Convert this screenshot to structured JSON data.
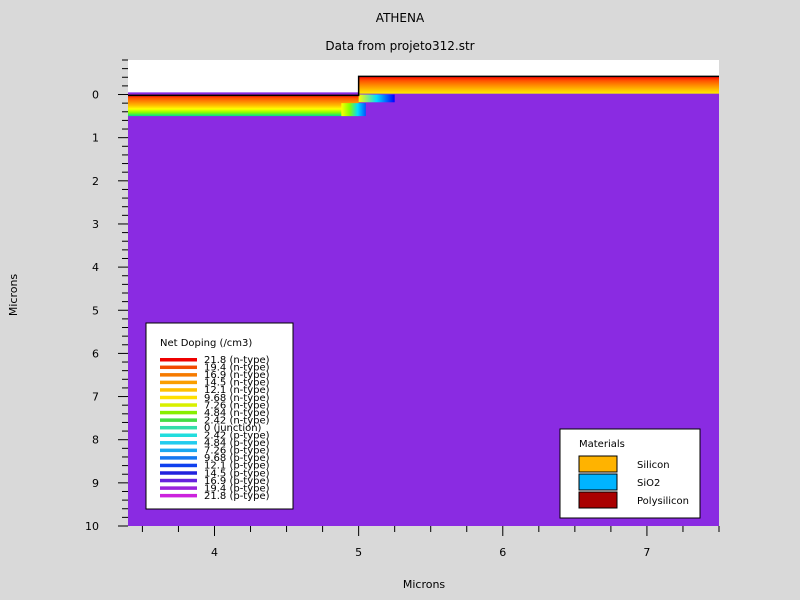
{
  "chart_data": {
    "type": "heatmap",
    "title": "ATHENA",
    "subtitle": "Data from projeto312.str",
    "xlabel": "Microns",
    "ylabel": "Microns",
    "xlim": [
      3.4,
      7.5
    ],
    "ylim": [
      -0.8,
      10
    ],
    "y_inverted": true,
    "x_ticks": [
      4,
      5,
      6,
      7
    ],
    "y_ticks": [
      0,
      1,
      2,
      3,
      4,
      5,
      6,
      7,
      8,
      9,
      10
    ],
    "regions": [
      {
        "name": "substrate",
        "color": "#8a2be2",
        "x": [
          3.4,
          7.5
        ],
        "y": [
          -0.05,
          10
        ]
      },
      {
        "name": "implant-left",
        "type": "gradient",
        "x": [
          3.4,
          5.0
        ],
        "y": [
          0.0,
          0.5
        ],
        "colors": [
          "#ff0000",
          "#ff5500",
          "#ff8800",
          "#ffbb00",
          "#ffff00",
          "#88ff00",
          "#00dd88"
        ]
      },
      {
        "name": "implant-right",
        "type": "gradient",
        "x": [
          5.0,
          7.5
        ],
        "y": [
          -0.42,
          -0.02
        ],
        "colors": [
          "#ff0000",
          "#ff5500",
          "#ff8800",
          "#ffbb00",
          "#ffee00"
        ]
      },
      {
        "name": "edge-left",
        "type": "hgradient",
        "x": [
          4.88,
          5.05
        ],
        "y": [
          0.2,
          0.5
        ],
        "colors": [
          "#ffff00",
          "#88ff00",
          "#00ddff",
          "#0055ff"
        ]
      },
      {
        "name": "edge-right",
        "type": "hgradient",
        "x": [
          5.0,
          5.25
        ],
        "y": [
          0.0,
          0.18
        ],
        "colors": [
          "#ffff00",
          "#00ddff",
          "#0000ff"
        ]
      }
    ],
    "legend": {
      "title": "Net Doping (/cm3)",
      "placement": "bottom-left",
      "entries": [
        {
          "label": "21.8 (n-type)",
          "color": "#ee0000"
        },
        {
          "label": "19.4 (n-type)",
          "color": "#f24a00"
        },
        {
          "label": "16.9 (n-type)",
          "color": "#f67a00"
        },
        {
          "label": "14.5 (n-type)",
          "color": "#fa9e00"
        },
        {
          "label": "12.1 (n-type)",
          "color": "#ffc000"
        },
        {
          "label": "9.68 (n-type)",
          "color": "#ffe000"
        },
        {
          "label": "7.26 (n-type)",
          "color": "#d8f000"
        },
        {
          "label": "4.84 (n-type)",
          "color": "#88ee00"
        },
        {
          "label": "2.42 (n-type)",
          "color": "#44dd44"
        },
        {
          "label": "0 (junction)",
          "color": "#33ddaa"
        },
        {
          "label": "2.42 (p-type)",
          "color": "#22dddd"
        },
        {
          "label": "4.84 (p-type)",
          "color": "#22ccee"
        },
        {
          "label": "7.26 (p-type)",
          "color": "#1aa8f0"
        },
        {
          "label": "9.68 (p-type)",
          "color": "#1477f0"
        },
        {
          "label": "12.1 (p-type)",
          "color": "#1040ee"
        },
        {
          "label": "14.5 (p-type)",
          "color": "#2222dd"
        },
        {
          "label": "16.9 (p-type)",
          "color": "#6622dd"
        },
        {
          "label": "19.4 (p-type)",
          "color": "#9922dd"
        },
        {
          "label": "21.8 (p-type)",
          "color": "#cc22dd"
        }
      ]
    },
    "materials": {
      "title": "Materials",
      "placement": "bottom-right",
      "entries": [
        {
          "label": "Silicon",
          "color": "#ffb300"
        },
        {
          "label": "SiO2",
          "color": "#00b4ff"
        },
        {
          "label": "Polysilicon",
          "color": "#aa0000"
        }
      ]
    }
  }
}
